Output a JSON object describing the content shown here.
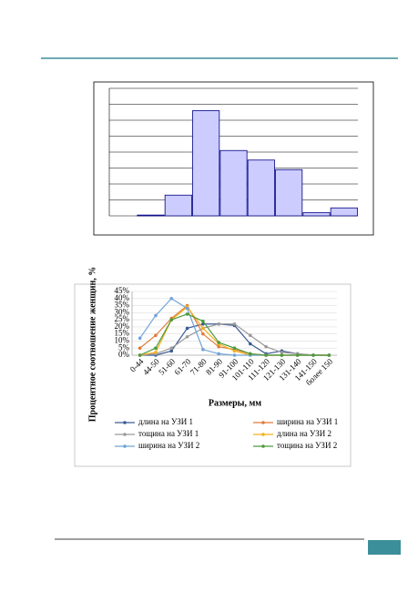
{
  "chart_data": [
    {
      "type": "bar",
      "categories": [
        null,
        null,
        null,
        null,
        null,
        null,
        null,
        null,
        null
      ],
      "values": [
        0,
        0.05,
        1.3,
        6.6,
        4.1,
        3.5,
        2.9,
        0.2,
        0.5
      ],
      "color": "#ccccff",
      "ylim": [
        0,
        8
      ],
      "yticks": [
        0,
        1,
        2,
        3,
        4,
        5,
        6,
        7,
        8
      ],
      "grid": true
    },
    {
      "type": "line",
      "ylabel": "Процентное соотношение женщин, %",
      "xlabel": "Размеры, мм",
      "categories": [
        "0-44",
        "44-50",
        "51-60",
        "61-70",
        "71-80",
        "81-90",
        "91-100",
        "101-110",
        "111-120",
        "121-130",
        "131-140",
        "141-150",
        "более 150"
      ],
      "ylim": [
        0,
        45
      ],
      "yticks": [
        {
          "value": 0,
          "label": "0%"
        },
        {
          "value": 5,
          "label": "5%"
        },
        {
          "value": 10,
          "label": "10%"
        },
        {
          "value": 15,
          "label": "15%"
        },
        {
          "value": 20,
          "label": "20%"
        },
        {
          "value": 25,
          "label": "25%"
        },
        {
          "value": 30,
          "label": "30%"
        },
        {
          "value": 35,
          "label": "35%"
        },
        {
          "value": 40,
          "label": "40%"
        },
        {
          "value": 45,
          "label": "45%"
        }
      ],
      "grid": true,
      "series": [
        {
          "name": "длина на УЗИ 1",
          "color": "#3c5a96",
          "values": [
            0,
            0,
            3,
            19,
            22,
            22,
            21,
            8,
            1,
            3,
            1,
            0,
            0
          ]
        },
        {
          "name": "ширина на УЗИ 1",
          "color": "#e07b39",
          "values": [
            5,
            14,
            26,
            35,
            15,
            6,
            4,
            1,
            0,
            0,
            0,
            0,
            0
          ]
        },
        {
          "name": "тощина на УЗИ 1",
          "color": "#9a9a9a",
          "values": [
            0,
            1,
            5,
            13,
            19,
            22,
            22,
            14,
            6,
            2,
            1,
            0,
            0
          ]
        },
        {
          "name": "длина на УЗИ 2",
          "color": "#f2b01e",
          "values": [
            0,
            2,
            25,
            34,
            19,
            8,
            3,
            0,
            0,
            0,
            0,
            0,
            0
          ]
        },
        {
          "name": "ширина на УЗИ 2",
          "color": "#6fa3d8",
          "values": [
            12,
            28,
            40,
            33,
            4,
            1,
            0,
            0,
            0,
            0,
            0,
            0,
            0
          ]
        },
        {
          "name": "тощина на УЗИ 2",
          "color": "#4e9a3c",
          "values": [
            0,
            5,
            25,
            29,
            24,
            9,
            5,
            1,
            0,
            0,
            0,
            0,
            0
          ]
        }
      ]
    }
  ]
}
